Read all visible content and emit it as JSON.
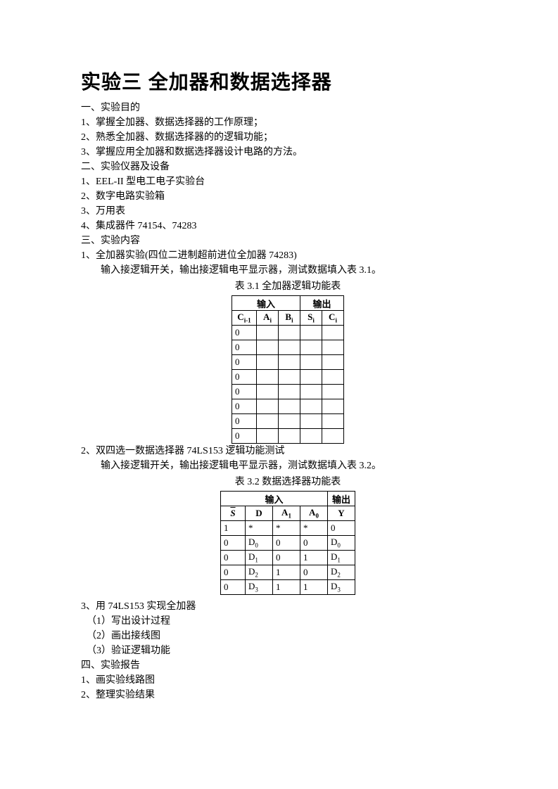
{
  "title": "实验三  全加器和数据选择器",
  "s1": {
    "heading": "一、实验目的",
    "items": [
      "1、掌握全加器、数据选择器的工作原理；",
      "2、熟悉全加器、数据选择器的的逻辑功能；",
      "3、掌握应用全加器和数据选择器设计电路的方法。"
    ]
  },
  "s2": {
    "heading": "二、实验仪器及设备",
    "items": [
      "1、EEL-II 型电工电子实验台",
      "2、数字电路实验箱",
      "3、万用表",
      "4、集成器件 74154、74283"
    ]
  },
  "s3": {
    "heading": "三、实验内容",
    "item1_a": "1、全加器实验(四位二进制超前进位全加器 74283)",
    "item1_b": "输入接逻辑开关，输出接逻辑电平显示器，测试数据填入表 3.1。",
    "table1_caption": "表 3.1  全加器逻辑功能表",
    "table1": {
      "group_in": "输入",
      "group_out": "输出",
      "headers": {
        "c_in": "C",
        "c_in_sub": "i-1",
        "a": "A",
        "a_sub": "i",
        "b": "B",
        "b_sub": "i",
        "s": "S",
        "s_sub": "i",
        "c_out": "C",
        "c_out_sub": "i"
      },
      "rows": [
        {
          "c": "0",
          "a": "",
          "b": "",
          "s": "",
          "co": ""
        },
        {
          "c": "0",
          "a": "",
          "b": "",
          "s": "",
          "co": ""
        },
        {
          "c": "0",
          "a": "",
          "b": "",
          "s": "",
          "co": ""
        },
        {
          "c": "0",
          "a": "",
          "b": "",
          "s": "",
          "co": ""
        },
        {
          "c": "0",
          "a": "",
          "b": "",
          "s": "",
          "co": ""
        },
        {
          "c": "0",
          "a": "",
          "b": "",
          "s": "",
          "co": ""
        },
        {
          "c": "0",
          "a": "",
          "b": "",
          "s": "",
          "co": ""
        },
        {
          "c": "0",
          "a": "",
          "b": "",
          "s": "",
          "co": ""
        }
      ]
    },
    "item2_a": "2、双四选一数据选择器 74LS153 逻辑功能测试",
    "item2_b": "输入接逻辑开关，输出接逻辑电平显示器，测试数据填入表 3.2。",
    "table2_caption": "表 3.2 数据选择器功能表",
    "table2": {
      "group_in": "输入",
      "group_out": "输出",
      "headers": {
        "s": "S",
        "d": "D",
        "a1": "A",
        "a1_sub": "1",
        "a0": "A",
        "a0_sub": "0",
        "y": "Y"
      },
      "rows": [
        {
          "s": "1",
          "d": "*",
          "a1": "*",
          "a0": "*",
          "y": "0"
        },
        {
          "s": "0",
          "d": "D",
          "d_sub": "0",
          "a1": "0",
          "a0": "0",
          "y": "D",
          "y_sub": "0"
        },
        {
          "s": "0",
          "d": "D",
          "d_sub": "1",
          "a1": "0",
          "a0": "1",
          "y": "D",
          "y_sub": "1"
        },
        {
          "s": "0",
          "d": "D",
          "d_sub": "2",
          "a1": "1",
          "a0": "0",
          "y": "D",
          "y_sub": "2"
        },
        {
          "s": "0",
          "d": "D",
          "d_sub": "3",
          "a1": "1",
          "a0": "1",
          "y": "D",
          "y_sub": "3"
        }
      ]
    },
    "item3": "3、用 74LS153 实现全加器",
    "item3_sub": [
      "（1）写出设计过程",
      "（2）画出接线图",
      "（3）验证逻辑功能"
    ]
  },
  "s4": {
    "heading": "四、实验报告",
    "items": [
      "1、画实验线路图",
      "2、整理实验结果"
    ]
  }
}
